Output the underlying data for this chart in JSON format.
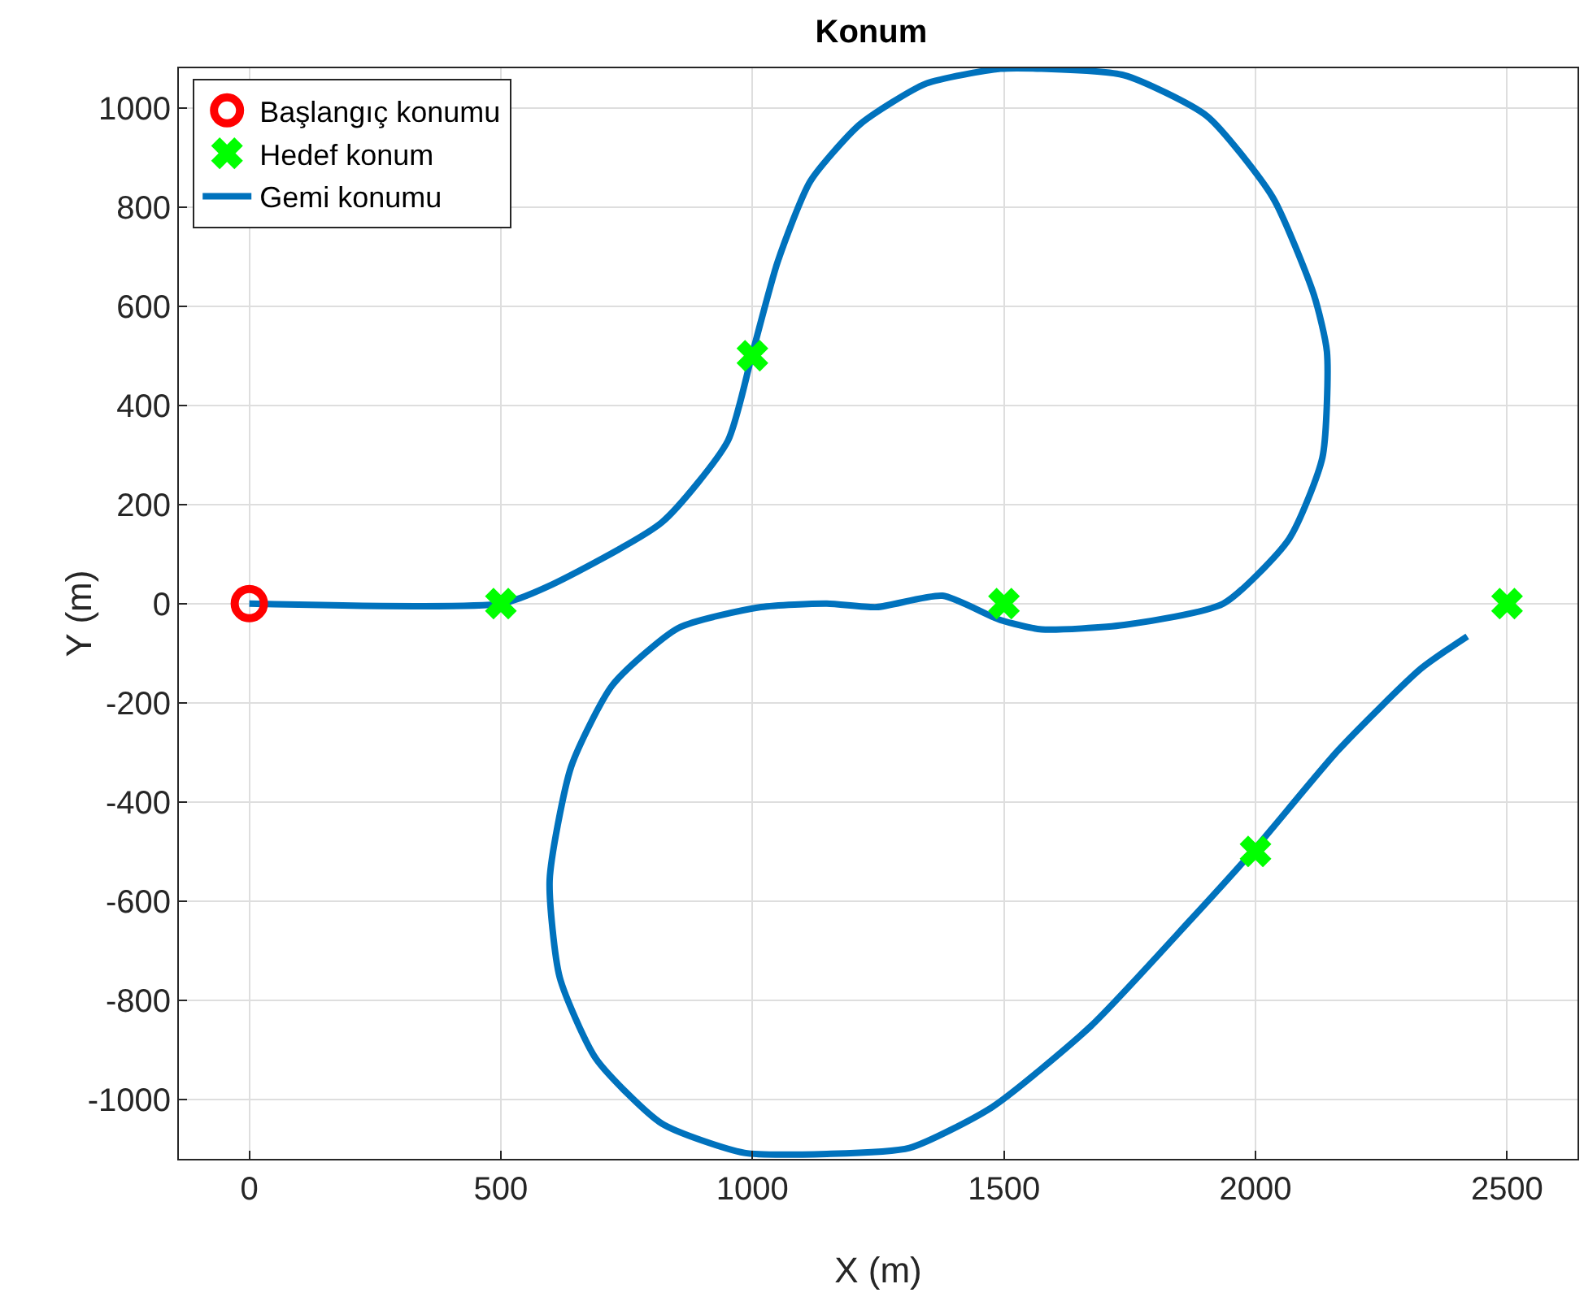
{
  "chart_data": {
    "type": "line",
    "title": "Konum",
    "xlabel": "X (m)",
    "ylabel": "Y (m)",
    "xlim": [
      -140,
      2640
    ],
    "ylim": [
      -1120,
      1080
    ],
    "xticks": [
      0,
      500,
      1000,
      1500,
      2000,
      2500
    ],
    "yticks": [
      -1000,
      -800,
      -600,
      -400,
      -200,
      0,
      200,
      400,
      600,
      800,
      1000
    ],
    "grid": true,
    "legend": "top left",
    "series": [
      {
        "name": "Başlangıç konumu",
        "type": "scatter",
        "marker": "circle",
        "color": "#ff0000",
        "x": [
          0
        ],
        "values": [
          0
        ]
      },
      {
        "name": "Hedef konum",
        "type": "scatter",
        "marker": "cross",
        "color": "#00ff00",
        "x": [
          500,
          1000,
          1500,
          2000,
          2500
        ],
        "values": [
          0,
          500,
          0,
          -500,
          0
        ]
      },
      {
        "name": "Gemi konumu",
        "line_style": "solid",
        "color": "#0072bd",
        "x": [
          0,
          500,
          590,
          820,
          951,
          1000,
          1050,
          1115,
          1214,
          1345,
          1493,
          1575,
          1739,
          1903,
          2034,
          2116,
          2142,
          2133,
          2067,
          1936,
          1739,
          1575,
          1493,
          1378,
          1247,
          1148,
          1017,
          853,
          722,
          640,
          597,
          617,
          689,
          820,
          984,
          1148,
          1312,
          1476,
          1673,
          1870,
          2001,
          2165,
          2329,
          2421
        ],
        "values": [
          0,
          0,
          33,
          164,
          328,
          505,
          689,
          852,
          967,
          1049,
          1079,
          1079,
          1066,
          984,
          820,
          623,
          508,
          295,
          131,
          0,
          -43,
          -52,
          -33,
          16,
          -7,
          0,
          -7,
          -49,
          -164,
          -328,
          -557,
          -754,
          -918,
          -1049,
          -1108,
          -1110,
          -1098,
          -1016,
          -852,
          -639,
          -492,
          -295,
          -131,
          -66
        ]
      }
    ]
  }
}
